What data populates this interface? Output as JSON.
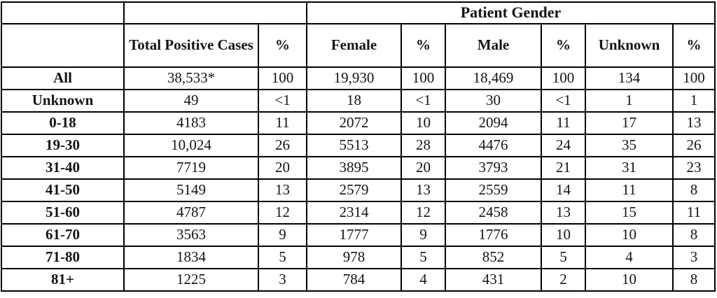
{
  "table": {
    "group_header": "Patient Gender",
    "columns": [
      "",
      "Total Positive Cases",
      "%",
      "Female",
      "%",
      "Male",
      "%",
      "Unknown",
      "%"
    ],
    "rows": [
      {
        "label": "All",
        "cells": [
          "38,533*",
          "100",
          "19,930",
          "100",
          "18,469",
          "100",
          "134",
          "100"
        ]
      },
      {
        "label": "Unknown",
        "cells": [
          "49",
          "<1",
          "18",
          "<1",
          "30",
          "<1",
          "1",
          "1"
        ]
      },
      {
        "label": "0-18",
        "cells": [
          "4183",
          "11",
          "2072",
          "10",
          "2094",
          "11",
          "17",
          "13"
        ]
      },
      {
        "label": "19-30",
        "cells": [
          "10,024",
          "26",
          "5513",
          "28",
          "4476",
          "24",
          "35",
          "26"
        ]
      },
      {
        "label": "31-40",
        "cells": [
          "7719",
          "20",
          "3895",
          "20",
          "3793",
          "21",
          "31",
          "23"
        ]
      },
      {
        "label": "41-50",
        "cells": [
          "5149",
          "13",
          "2579",
          "13",
          "2559",
          "14",
          "11",
          "8"
        ]
      },
      {
        "label": "51-60",
        "cells": [
          "4787",
          "12",
          "2314",
          "12",
          "2458",
          "13",
          "15",
          "11"
        ]
      },
      {
        "label": "61-70",
        "cells": [
          "3563",
          "9",
          "1777",
          "9",
          "1776",
          "10",
          "10",
          "8"
        ]
      },
      {
        "label": "71-80",
        "cells": [
          "1834",
          "5",
          "978",
          "5",
          "852",
          "5",
          "4",
          "3"
        ]
      },
      {
        "label": "81+",
        "cells": [
          "1225",
          "3",
          "784",
          "4",
          "431",
          "2",
          "10",
          "8"
        ]
      }
    ]
  }
}
